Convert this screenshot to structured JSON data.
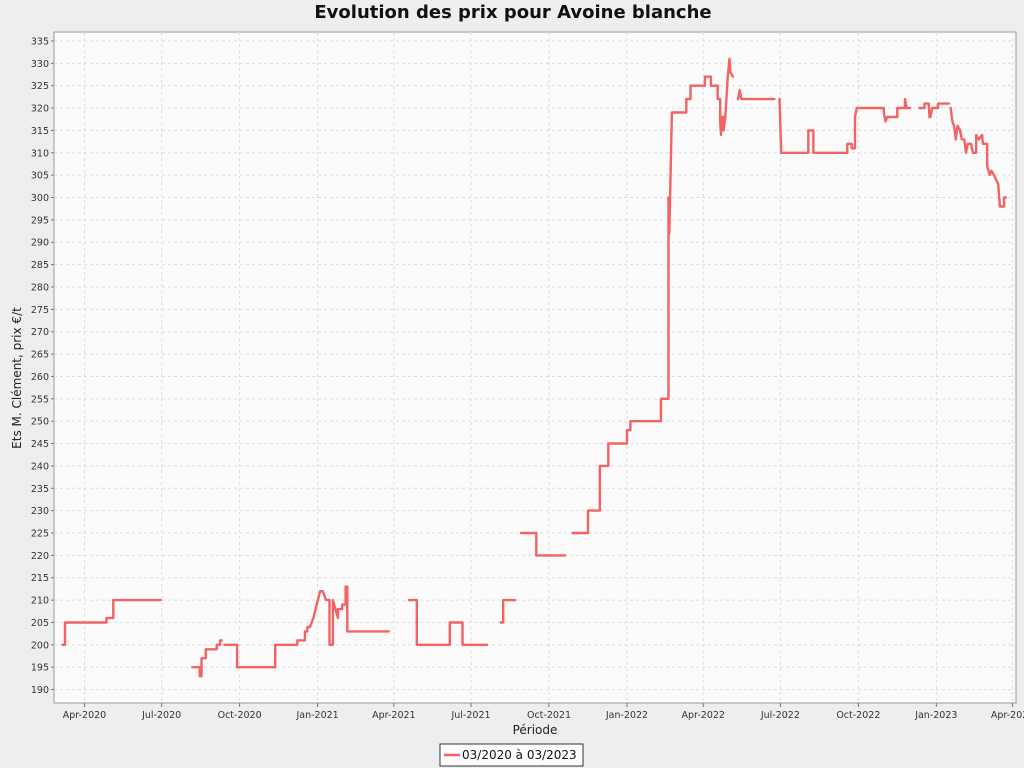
{
  "chart_data": {
    "type": "line",
    "title": "Evolution des prix pour Avoine blanche",
    "xlabel": "Période",
    "ylabel": "Ets M. Clément, prix €/t",
    "ylim": [
      187,
      337
    ],
    "xlim": [
      "2020-02-25",
      "2023-04-05"
    ],
    "y_ticks": [
      190,
      195,
      200,
      205,
      210,
      215,
      220,
      225,
      230,
      235,
      240,
      245,
      250,
      255,
      260,
      265,
      270,
      275,
      280,
      285,
      290,
      295,
      300,
      305,
      310,
      315,
      320,
      325,
      330,
      335
    ],
    "x_ticks": [
      {
        "date": "2020-04-01",
        "label": "Apr-2020"
      },
      {
        "date": "2020-07-01",
        "label": "Jul-2020"
      },
      {
        "date": "2020-10-01",
        "label": "Oct-2020"
      },
      {
        "date": "2021-01-01",
        "label": "Jan-2021"
      },
      {
        "date": "2021-04-01",
        "label": "Apr-2021"
      },
      {
        "date": "2021-07-01",
        "label": "Jul-2021"
      },
      {
        "date": "2021-10-01",
        "label": "Oct-2021"
      },
      {
        "date": "2022-01-01",
        "label": "Jan-2022"
      },
      {
        "date": "2022-04-01",
        "label": "Apr-2022"
      },
      {
        "date": "2022-07-01",
        "label": "Jul-2022"
      },
      {
        "date": "2022-10-01",
        "label": "Oct-2022"
      },
      {
        "date": "2023-01-01",
        "label": "Jan-2023"
      },
      {
        "date": "2023-04-01",
        "label": "Apr-2023"
      }
    ],
    "grid": true,
    "legend_position": "bottom-center",
    "color": "#f26363",
    "series": [
      {
        "name": "03/2020 à 03/2023",
        "segments": [
          [
            [
              "2020-03-06",
              200
            ],
            [
              "2020-03-09",
              200
            ],
            [
              "2020-03-09",
              205
            ],
            [
              "2020-04-27",
              205
            ],
            [
              "2020-04-27",
              206
            ],
            [
              "2020-05-05",
              206
            ],
            [
              "2020-05-05",
              210
            ],
            [
              "2020-06-30",
              210
            ]
          ],
          [
            [
              "2020-08-06",
              195
            ],
            [
              "2020-08-15",
              195
            ],
            [
              "2020-08-15",
              193
            ],
            [
              "2020-08-17",
              193
            ],
            [
              "2020-08-17",
              197
            ],
            [
              "2020-08-22",
              197
            ],
            [
              "2020-08-22",
              199
            ],
            [
              "2020-09-04",
              199
            ],
            [
              "2020-09-04",
              200
            ],
            [
              "2020-09-08",
              200
            ],
            [
              "2020-09-08",
              201
            ],
            [
              "2020-09-10",
              201
            ]
          ],
          [
            [
              "2020-09-13",
              200
            ],
            [
              "2020-09-28",
              200
            ],
            [
              "2020-09-28",
              195
            ],
            [
              "2020-11-12",
              195
            ],
            [
              "2020-11-12",
              200
            ],
            [
              "2020-12-08",
              200
            ],
            [
              "2020-12-08",
              201
            ],
            [
              "2020-12-17",
              201
            ],
            [
              "2020-12-17",
              203
            ],
            [
              "2020-12-20",
              203
            ],
            [
              "2020-12-20",
              204
            ],
            [
              "2020-12-23",
              204
            ],
            [
              "2020-12-27",
              206
            ],
            [
              "2020-12-31",
              209
            ],
            [
              "2021-01-04",
              212
            ],
            [
              "2021-01-07",
              212
            ],
            [
              "2021-01-11",
              210
            ],
            [
              "2021-01-15",
              210
            ],
            [
              "2021-01-15",
              200
            ],
            [
              "2021-01-19",
              200
            ],
            [
              "2021-01-19",
              210
            ],
            [
              "2021-01-22",
              208
            ],
            [
              "2021-01-25",
              206
            ],
            [
              "2021-01-25",
              208
            ],
            [
              "2021-01-30",
              208
            ],
            [
              "2021-01-30",
              209
            ],
            [
              "2021-02-03",
              209
            ],
            [
              "2021-02-03",
              213
            ],
            [
              "2021-02-05",
              213
            ],
            [
              "2021-02-05",
              203
            ],
            [
              "2021-03-26",
              203
            ]
          ],
          [
            [
              "2021-04-19",
              210
            ],
            [
              "2021-04-28",
              210
            ],
            [
              "2021-04-28",
              200
            ],
            [
              "2021-06-06",
              200
            ],
            [
              "2021-06-06",
              205
            ],
            [
              "2021-06-21",
              205
            ],
            [
              "2021-06-21",
              200
            ],
            [
              "2021-07-20",
              200
            ]
          ],
          [
            [
              "2021-08-05",
              205
            ],
            [
              "2021-08-08",
              205
            ],
            [
              "2021-08-08",
              210
            ],
            [
              "2021-08-22",
              210
            ]
          ],
          [
            [
              "2021-08-29",
              225
            ],
            [
              "2021-09-16",
              225
            ],
            [
              "2021-09-16",
              220
            ],
            [
              "2021-10-20",
              220
            ]
          ],
          [
            [
              "2021-10-29",
              225
            ],
            [
              "2021-11-16",
              225
            ],
            [
              "2021-11-16",
              230
            ],
            [
              "2021-11-30",
              230
            ],
            [
              "2021-11-30",
              240
            ],
            [
              "2021-12-10",
              240
            ],
            [
              "2021-12-10",
              245
            ],
            [
              "2022-01-01",
              245
            ],
            [
              "2022-01-01",
              248
            ],
            [
              "2022-01-05",
              248
            ],
            [
              "2022-01-05",
              250
            ],
            [
              "2022-02-10",
              250
            ],
            [
              "2022-02-10",
              255
            ],
            [
              "2022-02-19",
              255
            ],
            [
              "2022-02-19",
              300
            ],
            [
              "2022-02-20",
              292
            ],
            [
              "2022-02-23",
              319
            ],
            [
              "2022-03-12",
              319
            ],
            [
              "2022-03-12",
              322
            ],
            [
              "2022-03-17",
              322
            ],
            [
              "2022-03-17",
              325
            ],
            [
              "2022-04-03",
              325
            ],
            [
              "2022-04-03",
              327
            ],
            [
              "2022-04-10",
              327
            ],
            [
              "2022-04-10",
              325
            ],
            [
              "2022-04-18",
              325
            ],
            [
              "2022-04-18",
              322
            ],
            [
              "2022-04-21",
              322
            ],
            [
              "2022-04-21",
              317
            ],
            [
              "2022-04-22",
              314
            ],
            [
              "2022-04-23",
              318
            ],
            [
              "2022-04-25",
              318
            ],
            [
              "2022-04-25",
              315
            ],
            [
              "2022-04-27",
              318
            ],
            [
              "2022-04-30",
              327
            ],
            [
              "2022-05-02",
              331
            ],
            [
              "2022-05-03",
              328
            ],
            [
              "2022-05-06",
              327
            ]
          ],
          [
            [
              "2022-05-12",
              322
            ],
            [
              "2022-05-14",
              324
            ],
            [
              "2022-05-16",
              322
            ],
            [
              "2022-06-24",
              322
            ]
          ],
          [
            [
              "2022-06-30",
              322
            ],
            [
              "2022-07-02",
              310
            ],
            [
              "2022-08-03",
              310
            ],
            [
              "2022-08-03",
              315
            ],
            [
              "2022-08-09",
              315
            ],
            [
              "2022-08-09",
              310
            ],
            [
              "2022-09-18",
              310
            ],
            [
              "2022-09-18",
              312
            ],
            [
              "2022-09-23",
              312
            ],
            [
              "2022-09-23",
              311
            ],
            [
              "2022-09-27",
              311
            ],
            [
              "2022-09-27",
              318
            ],
            [
              "2022-09-29",
              320
            ],
            [
              "2022-10-31",
              320
            ],
            [
              "2022-10-31",
              319
            ],
            [
              "2022-11-02",
              317
            ],
            [
              "2022-11-04",
              318
            ],
            [
              "2022-11-16",
              318
            ],
            [
              "2022-11-16",
              320
            ],
            [
              "2022-11-25",
              320
            ],
            [
              "2022-11-25",
              322
            ],
            [
              "2022-11-27",
              320
            ],
            [
              "2022-12-01",
              320
            ]
          ],
          [
            [
              "2022-12-12",
              320
            ],
            [
              "2022-12-18",
              320
            ],
            [
              "2022-12-18",
              321
            ],
            [
              "2022-12-23",
              321
            ],
            [
              "2022-12-24",
              318
            ],
            [
              "2022-12-25",
              318
            ],
            [
              "2022-12-27",
              320
            ],
            [
              "2023-01-03",
              320
            ],
            [
              "2023-01-03",
              321
            ],
            [
              "2023-01-16",
              321
            ]
          ],
          [
            [
              "2023-01-18",
              320
            ],
            [
              "2023-01-20",
              317
            ],
            [
              "2023-01-22",
              316
            ],
            [
              "2023-01-24",
              313
            ],
            [
              "2023-01-26",
              316
            ],
            [
              "2023-01-29",
              315
            ],
            [
              "2023-01-31",
              313
            ],
            [
              "2023-02-03",
              313
            ],
            [
              "2023-02-05",
              310
            ],
            [
              "2023-02-07",
              312
            ],
            [
              "2023-02-11",
              312
            ],
            [
              "2023-02-13",
              310
            ],
            [
              "2023-02-17",
              310
            ],
            [
              "2023-02-17",
              314
            ],
            [
              "2023-02-20",
              313
            ],
            [
              "2023-02-24",
              314
            ],
            [
              "2023-02-25",
              312
            ],
            [
              "2023-03-02",
              312
            ],
            [
              "2023-03-02",
              307
            ],
            [
              "2023-03-05",
              305
            ],
            [
              "2023-03-07",
              306
            ],
            [
              "2023-03-10",
              305
            ],
            [
              "2023-03-15",
              303
            ],
            [
              "2023-03-17",
              298
            ],
            [
              "2023-03-22",
              298
            ],
            [
              "2023-03-22",
              300
            ],
            [
              "2023-03-24",
              300
            ]
          ]
        ]
      }
    ]
  }
}
